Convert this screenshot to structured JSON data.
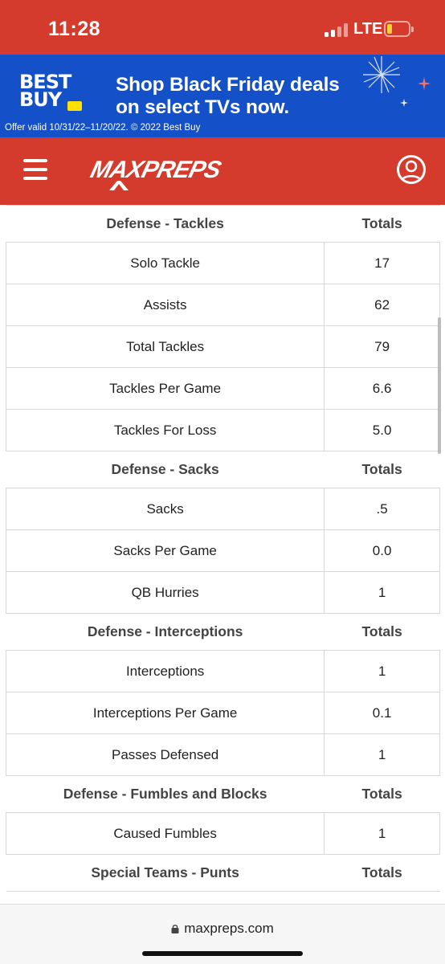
{
  "status_bar": {
    "time": "11:28",
    "network": "LTE",
    "signal_bars_active": 2,
    "battery_level": 0.15,
    "icons": [
      "signal-icon",
      "battery-icon"
    ]
  },
  "ad": {
    "brand_line1": "BEST",
    "brand_line2": "BUY",
    "headline_line1": "Shop Black Friday deals",
    "headline_line2": "on select TVs now.",
    "legal": "Offer valid 10/31/22–11/20/22. © 2022 Best Buy"
  },
  "header": {
    "logo_text": "MAXPREPS",
    "icons": [
      "hamburger-menu-icon",
      "user-profile-icon"
    ],
    "colors": {
      "brand_red": "#d43b2c",
      "ad_blue": "#1450c8"
    }
  },
  "sections": [
    {
      "title": "Defense - Tackles",
      "value_header": "Totals",
      "rows": [
        {
          "label": "Solo Tackle",
          "value": "17"
        },
        {
          "label": "Assists",
          "value": "62"
        },
        {
          "label": "Total Tackles",
          "value": "79"
        },
        {
          "label": "Tackles Per Game",
          "value": "6.6"
        },
        {
          "label": "Tackles For Loss",
          "value": "5.0"
        }
      ]
    },
    {
      "title": "Defense - Sacks",
      "value_header": "Totals",
      "rows": [
        {
          "label": "Sacks",
          "value": ".5"
        },
        {
          "label": "Sacks Per Game",
          "value": "0.0"
        },
        {
          "label": "QB Hurries",
          "value": "1"
        }
      ]
    },
    {
      "title": "Defense - Interceptions",
      "value_header": "Totals",
      "rows": [
        {
          "label": "Interceptions",
          "value": "1"
        },
        {
          "label": "Interceptions Per Game",
          "value": "0.1"
        },
        {
          "label": "Passes Defensed",
          "value": "1"
        }
      ]
    },
    {
      "title": "Defense - Fumbles and Blocks",
      "value_header": "Totals",
      "rows": [
        {
          "label": "Caused Fumbles",
          "value": "1"
        }
      ]
    },
    {
      "title": "Special Teams - Punts",
      "value_header": "Totals",
      "rows": []
    }
  ],
  "browser": {
    "url": "maxpreps.com",
    "icons": [
      "lock-icon"
    ]
  }
}
